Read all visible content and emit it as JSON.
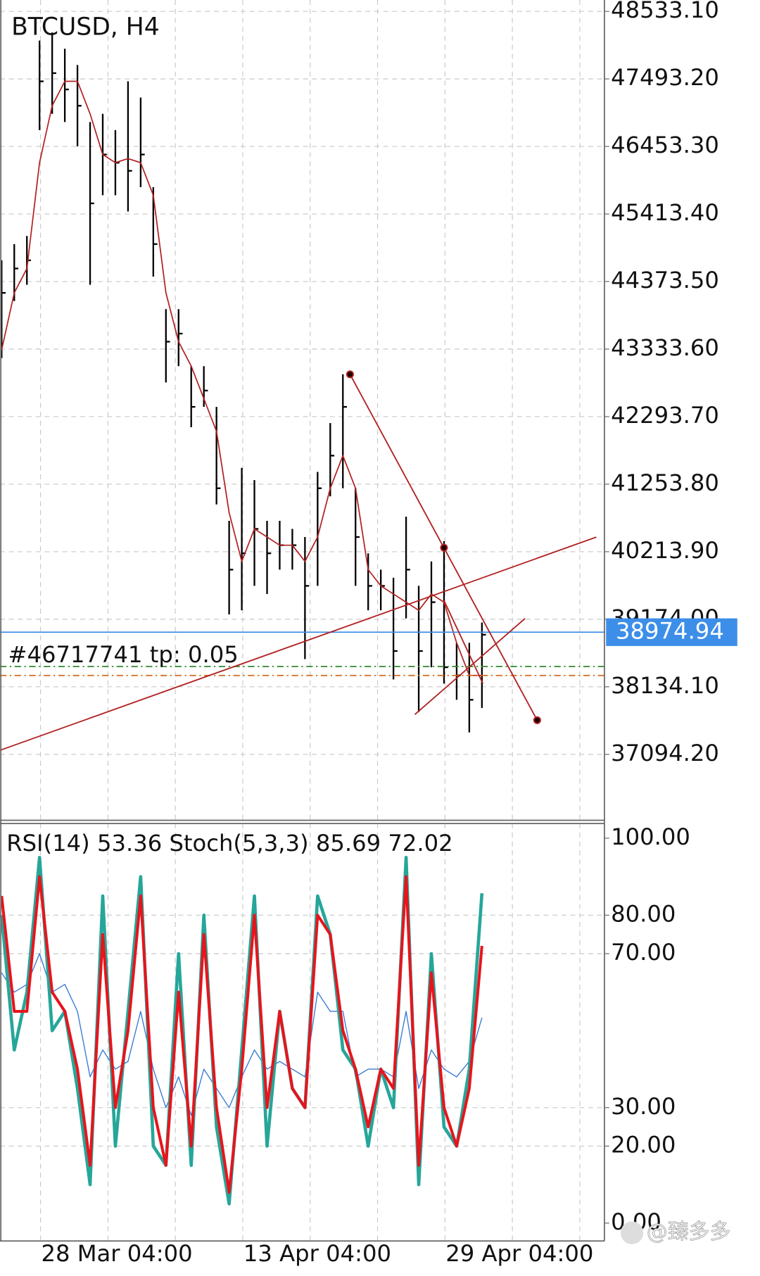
{
  "chart_data": [
    {
      "type": "hlc",
      "title": "BTCUSD, H4",
      "ylim": [
        36079,
        48708
      ],
      "yticks": [
        {
          "value": 48533.1,
          "label": "48533.10"
        },
        {
          "value": 47493.2,
          "label": "47493.20"
        },
        {
          "value": 46453.3,
          "label": "46453.30"
        },
        {
          "value": 45413.4,
          "label": "45413.40"
        },
        {
          "value": 44373.5,
          "label": "44373.50"
        },
        {
          "value": 43333.6,
          "label": "43333.60"
        },
        {
          "value": 42293.7,
          "label": "42293.70"
        },
        {
          "value": 41253.8,
          "label": "41253.80"
        },
        {
          "value": 40213.9,
          "label": "40213.90"
        },
        {
          "value": 39174,
          "label": "39174.00"
        },
        {
          "value": 38134.1,
          "label": "38134.10"
        },
        {
          "value": 37094.2,
          "label": "37094.20"
        }
      ],
      "grid": true,
      "series": [
        {
          "color": "#000000",
          "high": [
            44700,
            44950,
            45076,
            48083,
            48208,
            47958,
            47707,
            46830,
            46955,
            46705,
            47456,
            47206,
            45827,
            43948,
            43948,
            43071,
            43071,
            42444,
            40690,
            41505,
            41317,
            40690,
            40690,
            40565,
            40440,
            41442,
            42194,
            42946,
            41191,
            40189,
            39938,
            39813,
            40753,
            39688,
            40064,
            40377,
            38811,
            38811,
            39124
          ],
          "low": [
            43196,
            44073,
            44324,
            46705,
            46955,
            46830,
            46454,
            44324,
            45702,
            45702,
            45452,
            45827,
            44449,
            42820,
            43071,
            42131,
            42444,
            40941,
            39249,
            39312,
            39688,
            39562,
            39938,
            39938,
            38560,
            39688,
            41066,
            41191,
            39688,
            39312,
            39312,
            38247,
            39187,
            37746,
            38435,
            38184,
            37934,
            37432,
            37808
          ],
          "values": [
            44199,
            44574,
            44700,
            47456,
            47582,
            47331,
            47080,
            45577,
            46329,
            46203,
            46078,
            46329,
            44950,
            43447,
            43572,
            42444,
            42695,
            41191,
            39938,
            40189,
            40565,
            40189,
            40314,
            40314,
            39688,
            41191,
            41693,
            42444,
            40440,
            39688,
            39688,
            38685,
            39938,
            38685,
            39437,
            38435,
            38309,
            37934,
            38936
          ]
        },
        {
          "color": "#b22222",
          "values": [
            43321,
            44199,
            44574,
            46203,
            47080,
            47456,
            47456,
            46955,
            46329,
            46203,
            46266,
            46203,
            45702,
            44199,
            43447,
            43071,
            42570,
            42068,
            40815,
            40064,
            40565,
            40440,
            40314,
            40314,
            40064,
            40440,
            41191,
            41693,
            41191,
            39938,
            39688,
            39562,
            39437,
            39312,
            39562,
            39437,
            38811,
            38309,
            38309
          ]
        }
      ],
      "last_price": 38974.94,
      "last_price_color": "#3d8ee8",
      "levels": [
        {
          "value": 38447,
          "color": "#2e8b2e"
        },
        {
          "value": 38309,
          "color": "#d2691e"
        }
      ],
      "annotation": "#46717741 tp: 0.05"
    },
    {
      "type": "line",
      "title": "RSI(14) 53.36 Stoch(5,3,3) 85.69 72.02",
      "ylim": [
        0,
        100
      ],
      "yticks": [
        {
          "value": 100,
          "label": "100.00"
        },
        {
          "value": 80,
          "label": "80.00"
        },
        {
          "value": 70,
          "label": "70.00"
        },
        {
          "value": 30,
          "label": "30.00"
        },
        {
          "value": 20,
          "label": "20.00"
        },
        {
          "value": 0,
          "label": "0.00"
        }
      ],
      "grid": true,
      "categories": [
        null,
        null,
        null,
        "28 Mar 04:00",
        null,
        null,
        null,
        null,
        null,
        null,
        null,
        null,
        null,
        null,
        null,
        null,
        null,
        null,
        null,
        "13 Apr 04:00",
        null,
        null,
        null,
        null,
        null,
        null,
        null,
        null,
        null,
        null,
        null,
        null,
        null,
        null,
        null,
        "29 Apr 04:00",
        null,
        null,
        null
      ],
      "series": [
        {
          "color": "#3a7bd5",
          "width": 1.2,
          "values": [
            65,
            60,
            62,
            70,
            60,
            62,
            55,
            38,
            45,
            40,
            42,
            55,
            40,
            30,
            38,
            28,
            40,
            35,
            30,
            38,
            45,
            40,
            42,
            40,
            38,
            60,
            55,
            55,
            38,
            40,
            40,
            38,
            55,
            35,
            45,
            40,
            38,
            42,
            53.36
          ]
        },
        {
          "color": "#26a69a",
          "width": 4,
          "values": [
            80,
            45,
            60,
            95,
            50,
            55,
            35,
            10,
            85,
            20,
            55,
            90,
            20,
            15,
            70,
            15,
            80,
            25,
            5,
            45,
            85,
            20,
            55,
            35,
            30,
            85,
            75,
            45,
            40,
            20,
            40,
            30,
            95,
            10,
            70,
            25,
            20,
            40,
            85.69
          ]
        },
        {
          "color": "#e8141c",
          "width": 3.5,
          "values": [
            85,
            55,
            55,
            90,
            60,
            55,
            40,
            15,
            75,
            30,
            50,
            85,
            30,
            15,
            60,
            20,
            75,
            30,
            8,
            40,
            80,
            30,
            55,
            35,
            30,
            80,
            75,
            50,
            40,
            25,
            40,
            35,
            90,
            15,
            65,
            30,
            20,
            35,
            72.02
          ]
        }
      ]
    }
  ],
  "watermark": "@臻多多"
}
